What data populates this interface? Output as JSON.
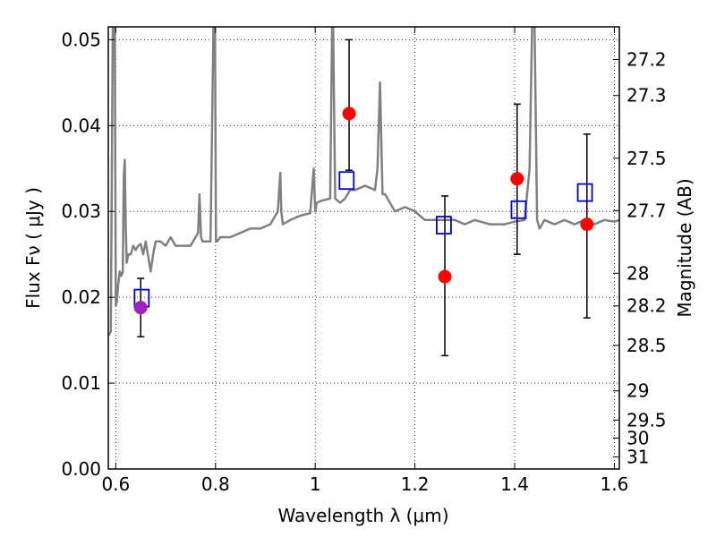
{
  "chart_data": {
    "type": "scatter",
    "xlabel": "Wavelength  λ (μm)",
    "ylabel": "Flux  Fν  ( μJy )",
    "ylabel_right": "Magnitude (AB)",
    "xlim": [
      0.585,
      1.61
    ],
    "ylim": [
      0.0,
      0.0515
    ],
    "x_ticks": [
      0.6,
      0.8,
      1.0,
      1.2,
      1.4,
      1.6
    ],
    "x_tick_labels": [
      "0.6",
      "0.8",
      "1",
      "1.2",
      "1.4",
      "1.6"
    ],
    "y_ticks": [
      0.0,
      0.01,
      0.02,
      0.03,
      0.04,
      0.05
    ],
    "y_tick_labels": [
      "0.00",
      "0.01",
      "0.02",
      "0.03",
      "0.04",
      "0.05"
    ],
    "right_ticks": [
      {
        "label": "27.2",
        "flux": 0.0477
      },
      {
        "label": "27.3",
        "flux": 0.0435
      },
      {
        "label": "27.5",
        "flux": 0.0362
      },
      {
        "label": "27.7",
        "flux": 0.0301
      },
      {
        "label": "28",
        "flux": 0.0228
      },
      {
        "label": "28.2",
        "flux": 0.019
      },
      {
        "label": "28.5",
        "flux": 0.0144
      },
      {
        "label": "29",
        "flux": 0.0091
      },
      {
        "label": "29.5",
        "flux": 0.0057
      },
      {
        "label": "30",
        "flux": 0.0036
      },
      {
        "label": "31",
        "flux": 0.0014
      }
    ],
    "grid": true,
    "series": [
      {
        "kind": "model-spectrum",
        "color": "#808080",
        "x": [
          0.585,
          0.59,
          0.594,
          0.596,
          0.598,
          0.6,
          0.602,
          0.605,
          0.608,
          0.611,
          0.614,
          0.616,
          0.618,
          0.62,
          0.622,
          0.625,
          0.63,
          0.635,
          0.64,
          0.645,
          0.65,
          0.655,
          0.66,
          0.67,
          0.675,
          0.68,
          0.69,
          0.7,
          0.71,
          0.72,
          0.73,
          0.75,
          0.765,
          0.768,
          0.771,
          0.774,
          0.78,
          0.79,
          0.796,
          0.797,
          0.799,
          0.801,
          0.803,
          0.81,
          0.83,
          0.85,
          0.87,
          0.89,
          0.91,
          0.925,
          0.93,
          0.932,
          0.935,
          0.95,
          0.97,
          0.99,
          0.997,
          1.0,
          1.003,
          1.01,
          1.03,
          1.034,
          1.036,
          1.04,
          1.05,
          1.06,
          1.07,
          1.08,
          1.1,
          1.12,
          1.125,
          1.13,
          1.135,
          1.14,
          1.16,
          1.18,
          1.2,
          1.22,
          1.25,
          1.28,
          1.3,
          1.32,
          1.35,
          1.38,
          1.4,
          1.42,
          1.43,
          1.435,
          1.44,
          1.445,
          1.45,
          1.46,
          1.48,
          1.5,
          1.52,
          1.54,
          1.56,
          1.58,
          1.6,
          1.61
        ],
        "y": [
          0.0155,
          0.016,
          0.0515,
          0.0515,
          0.0515,
          0.019,
          0.0195,
          0.0215,
          0.023,
          0.0225,
          0.023,
          0.034,
          0.036,
          0.028,
          0.024,
          0.025,
          0.025,
          0.026,
          0.0255,
          0.026,
          0.0262,
          0.025,
          0.0265,
          0.023,
          0.025,
          0.0265,
          0.0265,
          0.026,
          0.027,
          0.026,
          0.026,
          0.026,
          0.0275,
          0.032,
          0.027,
          0.0265,
          0.0265,
          0.0265,
          0.0515,
          0.0515,
          0.0515,
          0.0265,
          0.0265,
          0.027,
          0.027,
          0.0275,
          0.028,
          0.028,
          0.0285,
          0.03,
          0.0345,
          0.03,
          0.0285,
          0.029,
          0.0295,
          0.0298,
          0.035,
          0.03,
          0.031,
          0.0312,
          0.0315,
          0.0515,
          0.0515,
          0.0315,
          0.031,
          0.0315,
          0.0325,
          0.0325,
          0.033,
          0.0325,
          0.035,
          0.045,
          0.032,
          0.032,
          0.03,
          0.0305,
          0.03,
          0.029,
          0.029,
          0.029,
          0.0285,
          0.029,
          0.0285,
          0.0285,
          0.0288,
          0.029,
          0.035,
          0.0515,
          0.0515,
          0.029,
          0.028,
          0.029,
          0.0285,
          0.029,
          0.0285,
          0.029,
          0.0285,
          0.029,
          0.0288,
          0.029
        ]
      },
      {
        "kind": "observed-points",
        "color": "#ff0000",
        "x": [
          0.65,
          1.068,
          1.26,
          1.405,
          1.545
        ],
        "y": [
          0.0188,
          0.0414,
          0.0224,
          0.0338,
          0.0285
        ],
        "yerr_low": [
          0.0154,
          0.0348,
          0.0132,
          0.025,
          0.0176
        ],
        "yerr_high": [
          0.0222,
          0.05,
          0.0318,
          0.0425,
          0.039
        ]
      },
      {
        "kind": "model-bandpass-squares",
        "color": "#0000cc",
        "x": [
          0.652,
          1.063,
          1.258,
          1.408,
          1.541
        ],
        "y": [
          0.0199,
          0.0336,
          0.0284,
          0.0302,
          0.0322
        ]
      }
    ],
    "highlight_point": {
      "color": "#a020c0"
    }
  }
}
